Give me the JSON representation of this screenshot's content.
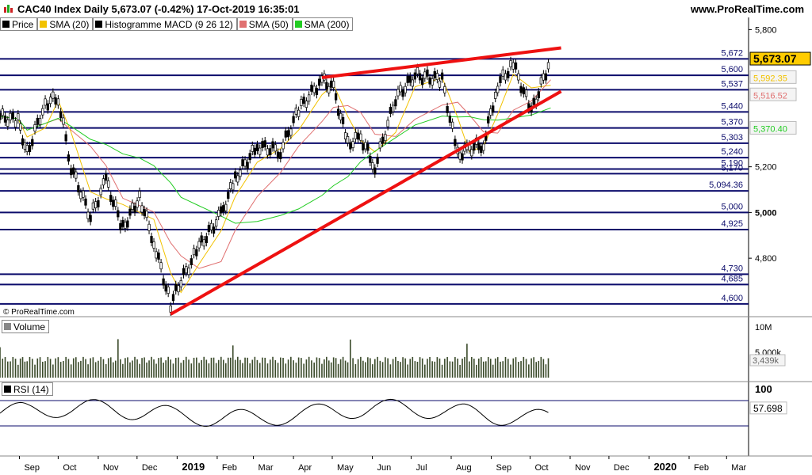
{
  "header": {
    "title": "CAC40 Index Daily 5,673.07 (-0.42%) 17-Oct-2019 16:35:01",
    "brand": "www.ProRealTime.com"
  },
  "legend": [
    {
      "label": "Price",
      "color": "#000000"
    },
    {
      "label": "SMA (20)",
      "color": "#f2c200"
    },
    {
      "label": "Histogramme MACD (9 26 12)",
      "color": "#000000"
    },
    {
      "label": "SMA (50)",
      "color": "#e07070"
    },
    {
      "label": "SMA (200)",
      "color": "#22cc22"
    }
  ],
  "copyright": "© ProRealTime.com",
  "volume_panel": {
    "label": "Volume"
  },
  "rsi_panel": {
    "label": "RSI (14)"
  },
  "chart_data": [
    {
      "type": "candlestick",
      "panel": "price",
      "y_axis_ticks": [
        "5,800",
        "5,200",
        "5,000",
        "4,800"
      ],
      "ylim": [
        4550,
        5860
      ],
      "x_axis_labels": [
        "Sep",
        "Oct",
        "Nov",
        "Dec",
        "2019",
        "Feb",
        "Mar",
        "Apr",
        "May",
        "Jun",
        "Jul",
        "Aug",
        "Sep",
        "Oct",
        "Nov",
        "Dec",
        "2020",
        "Feb",
        "Mar"
      ],
      "horizontal_levels": [
        {
          "value": 5672,
          "label": "5,672"
        },
        {
          "value": 5600,
          "label": "5,600"
        },
        {
          "value": 5537,
          "label": "5,537"
        },
        {
          "value": 5440,
          "label": "5,440"
        },
        {
          "value": 5370,
          "label": "5,370"
        },
        {
          "value": 5303,
          "label": "5,303"
        },
        {
          "value": 5240,
          "label": "5,240"
        },
        {
          "value": 5190,
          "label": "5,190"
        },
        {
          "value": 5170,
          "label": "5,170"
        },
        {
          "value": 5094.36,
          "label": "5,094.36"
        },
        {
          "value": 5000,
          "label": "5,000"
        },
        {
          "value": 4925,
          "label": "4,925"
        },
        {
          "value": 4730,
          "label": "4,730"
        },
        {
          "value": 4685,
          "label": "4,685"
        },
        {
          "value": 4600,
          "label": "4,600"
        }
      ],
      "badges": [
        {
          "value": "5,673.07",
          "role": "last_price",
          "color": "#ffcc00"
        },
        {
          "value": "5,592.35",
          "role": "sma20",
          "color": "#f2c200"
        },
        {
          "value": "5,516.52",
          "role": "sma50",
          "color": "#e07070"
        },
        {
          "value": "5,370.40",
          "role": "sma200",
          "color": "#22cc22"
        }
      ],
      "trendlines": [
        {
          "from": [
            "2018-12-27",
            4555
          ],
          "to": [
            "2019-10-25",
            5530
          ],
          "color": "#ee1111"
        },
        {
          "from": [
            "2019-04-23",
            5590
          ],
          "to": [
            "2019-10-25",
            5720
          ],
          "color": "#ee1111"
        }
      ],
      "price_path": [
        [
          "2018-08-17",
          5420
        ],
        [
          "2018-08-31",
          5400
        ],
        [
          "2018-09-07",
          5260
        ],
        [
          "2018-09-21",
          5480
        ],
        [
          "2018-10-01",
          5500
        ],
        [
          "2018-10-11",
          5200
        ],
        [
          "2018-10-26",
          4980
        ],
        [
          "2018-11-07",
          5140
        ],
        [
          "2018-11-20",
          4930
        ],
        [
          "2018-12-03",
          5070
        ],
        [
          "2018-12-14",
          4870
        ],
        [
          "2018-12-27",
          4600
        ],
        [
          "2019-01-04",
          4700
        ],
        [
          "2019-01-18",
          4850
        ],
        [
          "2019-02-04",
          4990
        ],
        [
          "2019-02-15",
          5150
        ],
        [
          "2019-03-04",
          5290
        ],
        [
          "2019-03-22",
          5270
        ],
        [
          "2019-04-05",
          5450
        ],
        [
          "2019-04-23",
          5580
        ],
        [
          "2019-05-02",
          5540
        ],
        [
          "2019-05-13",
          5300
        ],
        [
          "2019-05-23",
          5330
        ],
        [
          "2019-06-03",
          5200
        ],
        [
          "2019-06-19",
          5500
        ],
        [
          "2019-07-04",
          5600
        ],
        [
          "2019-07-25",
          5580
        ],
        [
          "2019-08-06",
          5250
        ],
        [
          "2019-08-15",
          5280
        ],
        [
          "2019-08-26",
          5300
        ],
        [
          "2019-09-06",
          5560
        ],
        [
          "2019-09-18",
          5650
        ],
        [
          "2019-10-02",
          5440
        ],
        [
          "2019-10-17",
          5673.07
        ]
      ]
    },
    {
      "type": "bar",
      "panel": "volume",
      "y_axis_ticks": [
        "10M",
        "5,000k"
      ],
      "last_value_badge": "3,439k"
    },
    {
      "type": "line",
      "panel": "rsi",
      "y_axis_ticks": [
        "100"
      ],
      "last_value_badge": "57.698",
      "reference_levels": [
        70,
        30
      ]
    }
  ]
}
